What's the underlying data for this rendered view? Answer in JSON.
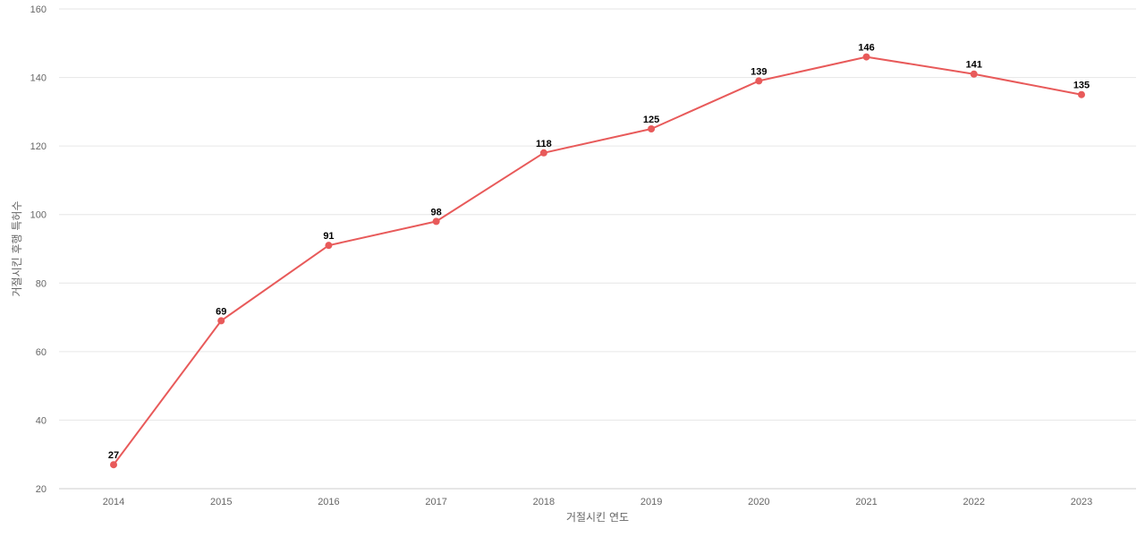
{
  "chart_data": {
    "type": "line",
    "title": "",
    "xlabel": "거절시킨 연도",
    "ylabel": "거절시킨 후행 특허수",
    "categories": [
      "2014",
      "2015",
      "2016",
      "2017",
      "2018",
      "2019",
      "2020",
      "2021",
      "2022",
      "2023"
    ],
    "series": [
      {
        "values": [
          27,
          69,
          91,
          98,
          118,
          125,
          139,
          146,
          141,
          135
        ],
        "color": "#e85a5a"
      }
    ],
    "ylim": [
      20,
      160
    ],
    "yticks": [
      20,
      40,
      60,
      80,
      100,
      120,
      140,
      160
    ],
    "grid": true,
    "data_labels": true
  }
}
